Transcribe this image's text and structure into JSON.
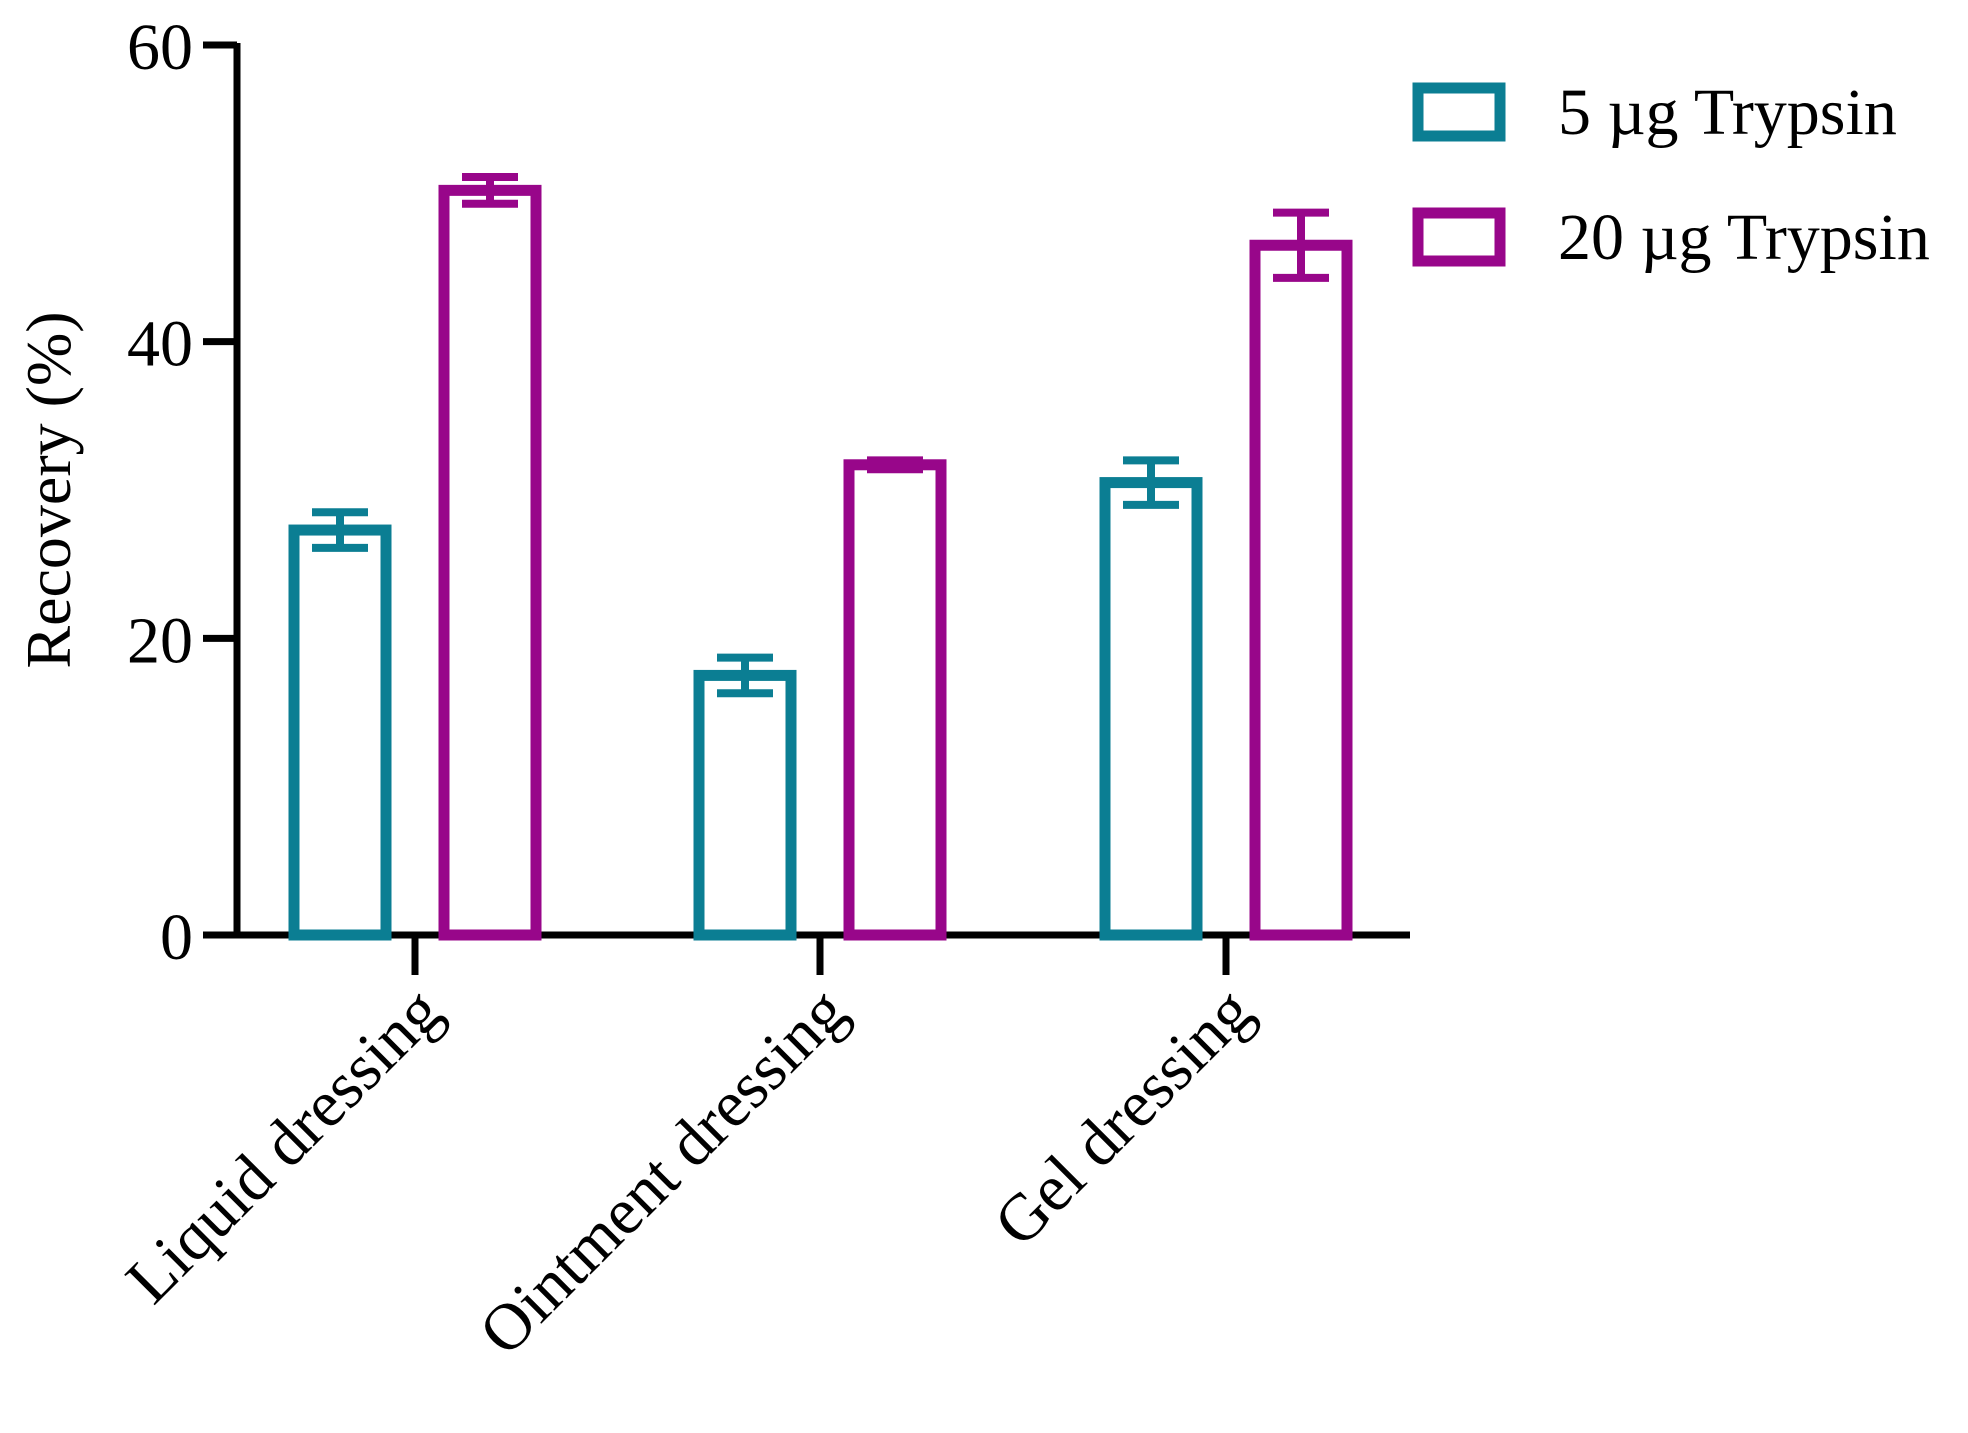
{
  "chart_data": {
    "type": "bar",
    "title": "",
    "xlabel": "",
    "ylabel": "Recovery  (%)",
    "ylim": [
      0,
      60
    ],
    "yticks": [
      0,
      20,
      40,
      60
    ],
    "grid": false,
    "legend_position": "top-right",
    "categories": [
      "Liquid dressing",
      "Ointment dressing",
      "Gel dressing"
    ],
    "series": [
      {
        "name": "5 µg Trypsin",
        "color": "#0b7e93",
        "values": [
          27.3,
          17.5,
          30.5
        ],
        "errors": [
          1.2,
          1.2,
          1.5
        ]
      },
      {
        "name": "20 µg Trypsin",
        "color": "#98068a",
        "values": [
          50.2,
          31.7,
          46.5
        ],
        "errors": [
          0.9,
          0.3,
          2.2
        ]
      }
    ]
  }
}
